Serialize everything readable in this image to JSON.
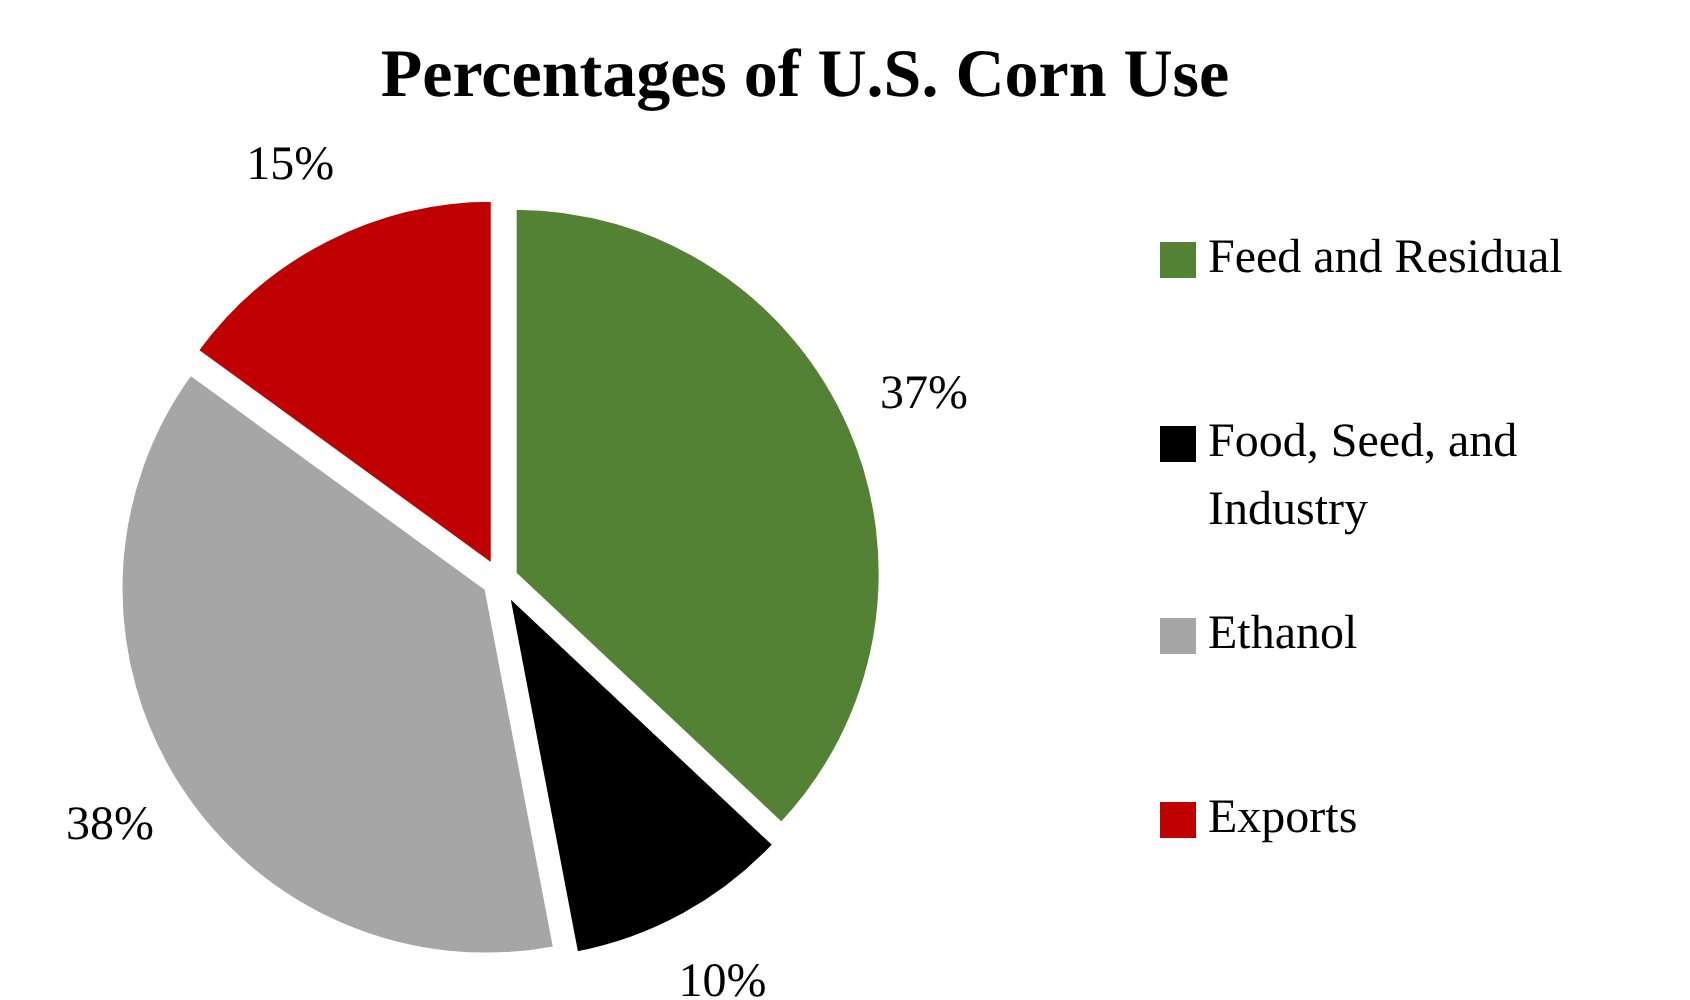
{
  "chart_data": {
    "type": "pie",
    "title": "Percentages of U.S. Corn Use",
    "categories": [
      "Feed and Residual",
      "Food, Seed, and Industry",
      "Ethanol",
      "Exports"
    ],
    "values": [
      37,
      10,
      38,
      15
    ],
    "colors": [
      "#548235",
      "#000000",
      "#a6a6a6",
      "#c00000"
    ],
    "value_labels": [
      "37%",
      "10%",
      "38%",
      "15%"
    ],
    "legend": "right"
  }
}
